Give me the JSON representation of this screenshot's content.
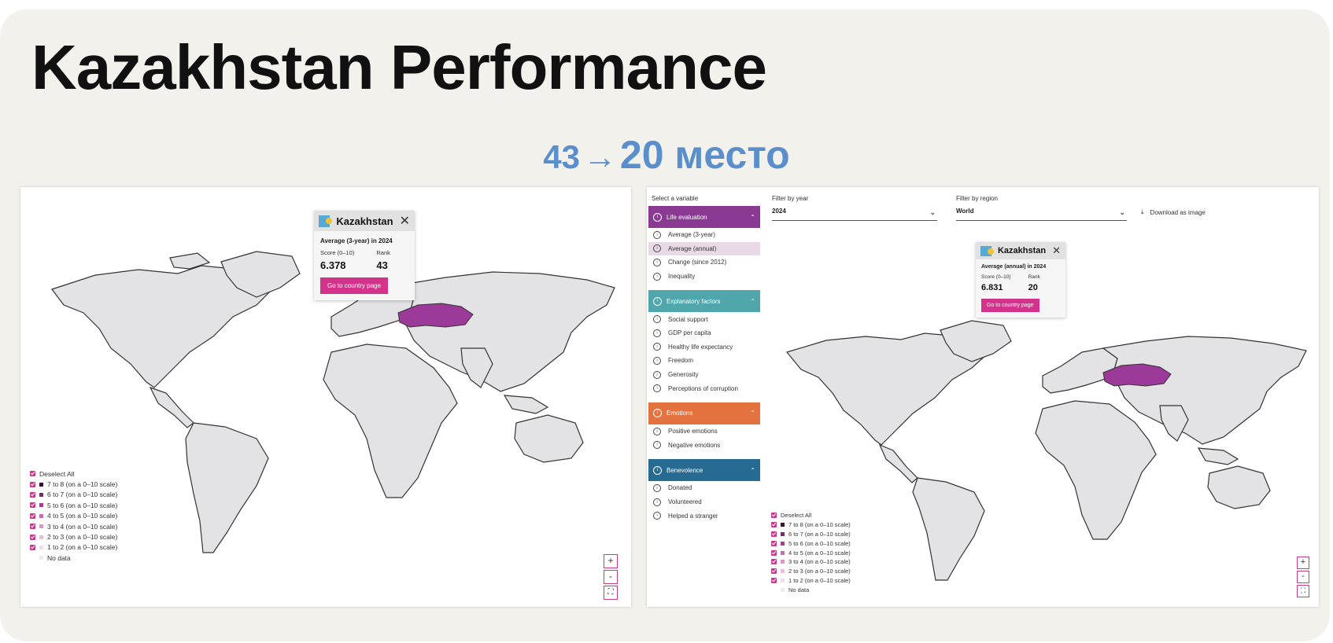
{
  "title": "Kazakhstan Performance",
  "subtitle": {
    "from": "43",
    "arrow": "→",
    "to": "20 место"
  },
  "colors": {
    "accent": "#d3338a",
    "kazakhstan": "#9c3a9a",
    "subtitle": "#5b8fcc"
  },
  "left": {
    "tooltip": {
      "country": "Kazakhstan",
      "caption": "Average (3-year) in 2024",
      "score_label": "Score (0–10)",
      "rank_label": "Rank",
      "score": "6.378",
      "rank": "43",
      "button": "Go to country page",
      "close_icon": "close-icon"
    },
    "legend": {
      "deselect": "Deselect All",
      "items": [
        "7 to 8 (on a 0–10 scale)",
        "6 to 7 (on a 0–10 scale)",
        "5 to 6 (on a 0–10 scale)",
        "4 to 5 (on a 0–10 scale)",
        "3 to 4 (on a 0–10 scale)",
        "2 to 3 (on a 0–10 scale)",
        "1 to 2 (on a 0–10 scale)"
      ],
      "no_data": "No data",
      "swatch_colors": [
        "#3d1035",
        "#7a2a6d",
        "#a04090",
        "#c070b0",
        "#d79ac7",
        "#e6bfdc",
        "#f1dcec"
      ]
    },
    "zoom": {
      "in": "+",
      "out": "-",
      "fullscreen": "⛶"
    }
  },
  "right": {
    "select_variable_label": "Select a variable",
    "filter_year": {
      "label": "Filter by year",
      "value": "2024"
    },
    "filter_region": {
      "label": "Filter by region",
      "value": "World"
    },
    "download": "Download as image",
    "groups": [
      {
        "label": "Life evaluation",
        "color": "#8b3a94",
        "items": [
          "Average (3-year)",
          "Average (annual)",
          "Change (since 2012)",
          "Inequality"
        ],
        "selected": 1
      },
      {
        "label": "Explanatory factors",
        "color": "#4fa7ab",
        "items": [
          "Social support",
          "GDP per capita",
          "Healthy life expectancy",
          "Freedom",
          "Generosity",
          "Perceptions of corruption"
        ]
      },
      {
        "label": "Emotions",
        "color": "#e3723f",
        "items": [
          "Positive emotions",
          "Negative emotions"
        ]
      },
      {
        "label": "Benevolence",
        "color": "#276b93",
        "items": [
          "Donated",
          "Volunteered",
          "Helped a stranger"
        ]
      }
    ],
    "tooltip": {
      "country": "Kazakhstan",
      "caption": "Average (annual) in 2024",
      "score_label": "Score (0–10)",
      "rank_label": "Rank",
      "score": "6.831",
      "rank": "20",
      "button": "Go to country page"
    },
    "legend": {
      "deselect": "Deselect All",
      "items": [
        "7 to 8 (on a 0–10 scale)",
        "6 to 7 (on a 0–10 scale)",
        "5 to 6 (on a 0–10 scale)",
        "4 to 5 (on a 0–10 scale)",
        "3 to 4 (on a 0–10 scale)",
        "2 to 3 (on a 0–10 scale)",
        "1 to 2 (on a 0–10 scale)"
      ],
      "no_data": "No data"
    },
    "zoom": {
      "in": "+",
      "out": "-",
      "fullscreen": "⛶"
    }
  }
}
